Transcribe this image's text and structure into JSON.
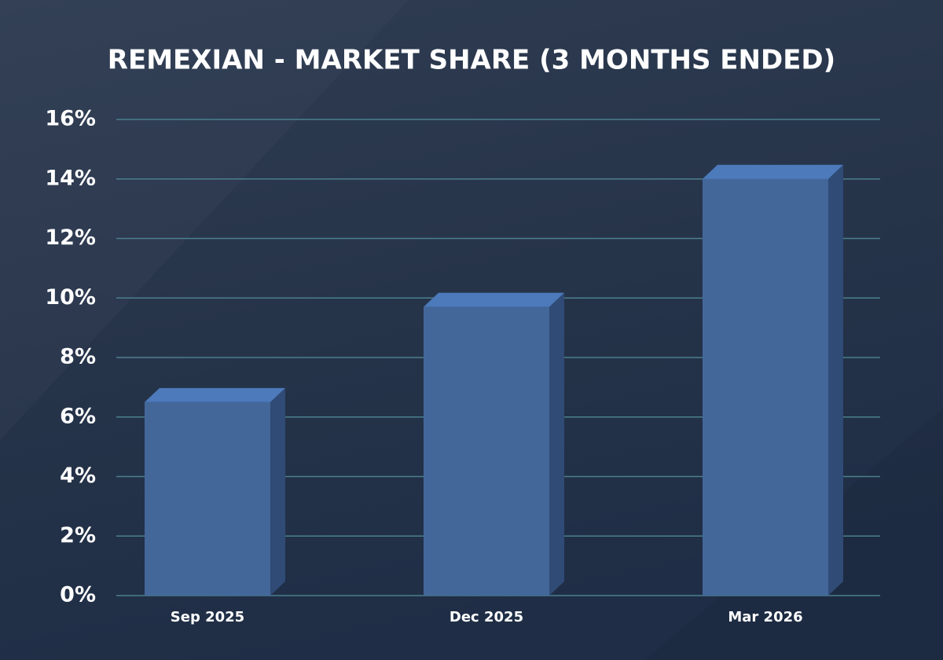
{
  "chart_data": {
    "type": "bar3d",
    "title": "REMEXIAN - MARKET SHARE (3 MONTHS ENDED)",
    "categories": [
      "Sep 2025",
      "Dec 2025",
      "Mar 2026"
    ],
    "values": [
      6.5,
      9.7,
      14
    ],
    "colors": {
      "front": "#44679a",
      "top": "#4c7abb",
      "side": "#2f4b76"
    },
    "ylim": [
      0,
      16
    ],
    "yticks": [
      {
        "value": 0,
        "label": "0%"
      },
      {
        "value": 2,
        "label": "2%"
      },
      {
        "value": 4,
        "label": "4%"
      },
      {
        "value": 6,
        "label": "6%"
      },
      {
        "value": 8,
        "label": "8%"
      },
      {
        "value": 10,
        "label": "10%"
      },
      {
        "value": 12,
        "label": "12%"
      },
      {
        "value": 14,
        "label": "14%"
      },
      {
        "value": 16,
        "label": "16%"
      }
    ],
    "grid": true
  }
}
